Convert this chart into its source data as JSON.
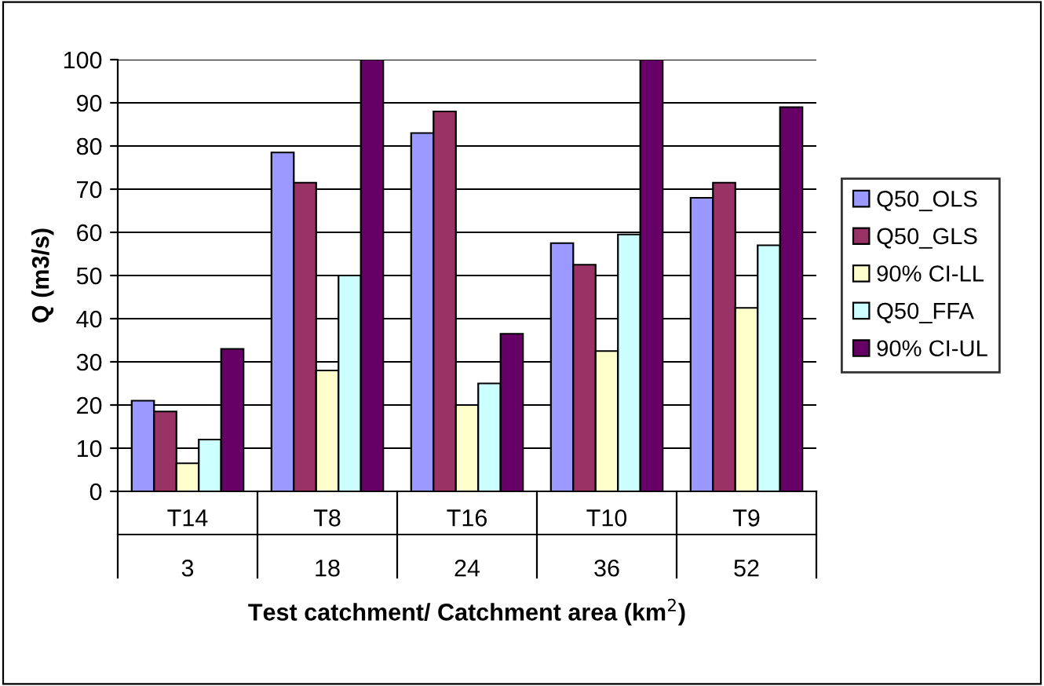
{
  "chart_data": {
    "type": "bar",
    "xlabel": "Test catchment/ Catchment area (km$^{2}$)",
    "ylabel": "Q (m3/s)",
    "categories": [
      "T14\n3",
      "T8\n18",
      "T16\n24",
      "T10\n36",
      "T9\n52"
    ],
    "series": [
      {
        "name": "Q50_OLS",
        "color": "#9999ff",
        "values": [
          21,
          78.5,
          83,
          57.5,
          68
        ]
      },
      {
        "name": "Q50_GLS",
        "color": "#993366",
        "values": [
          18.5,
          71.5,
          88,
          52.5,
          71.5
        ]
      },
      {
        "name": "90% CI-LL",
        "color": "#ffffcc",
        "values": [
          6.5,
          28,
          20,
          32.5,
          42.5
        ]
      },
      {
        "name": "Q50_FFA",
        "color": "#ccffff",
        "values": [
          12,
          50,
          25,
          59.5,
          57
        ]
      },
      {
        "name": "90% CI-UL",
        "color": "#660066",
        "values": [
          33,
          100,
          36.5,
          100,
          89
        ]
      }
    ],
    "ylim": [
      0,
      100
    ],
    "yticks": [
      0,
      10,
      20,
      30,
      40,
      50,
      60,
      70,
      80,
      90,
      100
    ],
    "grid": "y",
    "legend": "right"
  }
}
